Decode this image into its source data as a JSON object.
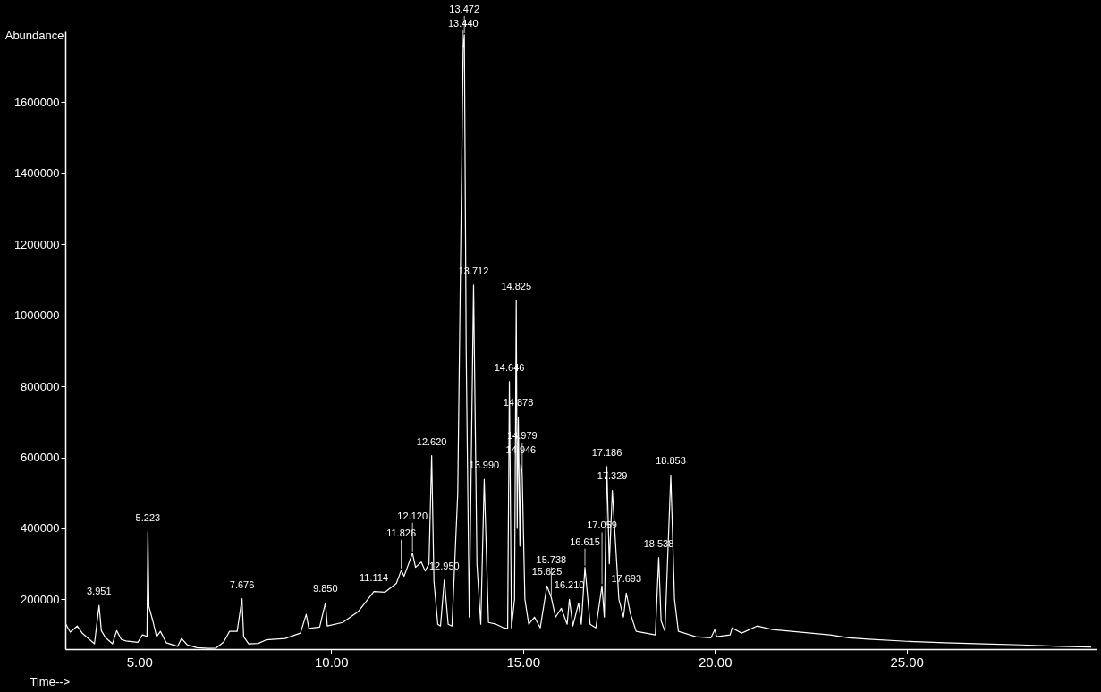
{
  "chart_data": {
    "type": "line",
    "xlabel": "Time-->",
    "ylabel": "Abundance",
    "xlim": [
      3.07,
      29.95
    ],
    "ylim": [
      60000,
      1800000
    ],
    "xticks": [
      {
        "value": 5,
        "label": "5.00"
      },
      {
        "value": 10,
        "label": "10.00"
      },
      {
        "value": 15,
        "label": "15.00"
      },
      {
        "value": 20,
        "label": "20.00"
      },
      {
        "value": 25,
        "label": "25.00"
      }
    ],
    "yticks": [
      200000,
      400000,
      600000,
      800000,
      1000000,
      1200000,
      1400000,
      1600000
    ],
    "grid": false,
    "marker": "none",
    "line_style": "solid",
    "series": [
      {
        "color": "#ffffff",
        "x": [
          3.07,
          3.2,
          3.38,
          3.52,
          3.83,
          3.951,
          4.01,
          4.12,
          4.3,
          4.41,
          4.53,
          4.65,
          4.96,
          5.08,
          5.2,
          5.223,
          5.25,
          5.35,
          5.45,
          5.55,
          5.7,
          6.0,
          6.1,
          6.25,
          6.5,
          6.8,
          7.0,
          7.2,
          7.35,
          7.55,
          7.676,
          7.72,
          7.85,
          8.1,
          8.3,
          8.8,
          9.2,
          9.35,
          9.42,
          9.7,
          9.85,
          9.9,
          10.3,
          10.7,
          11.114,
          11.4,
          11.7,
          11.826,
          11.9,
          12.12,
          12.2,
          12.35,
          12.45,
          12.55,
          12.62,
          12.68,
          12.78,
          12.85,
          12.95,
          13.05,
          13.15,
          13.3,
          13.44,
          13.472,
          13.52,
          13.6,
          13.712,
          13.8,
          13.9,
          13.99,
          14.1,
          14.3,
          14.5,
          14.6,
          14.646,
          14.7,
          14.78,
          14.825,
          14.85,
          14.878,
          14.92,
          14.946,
          14.979,
          15.05,
          15.15,
          15.3,
          15.45,
          15.625,
          15.738,
          15.85,
          16.0,
          16.15,
          16.21,
          16.3,
          16.45,
          16.52,
          16.615,
          16.75,
          16.9,
          17.059,
          17.12,
          17.186,
          17.25,
          17.329,
          17.5,
          17.62,
          17.693,
          17.8,
          17.95,
          18.2,
          18.45,
          18.538,
          18.6,
          18.7,
          18.853,
          18.95,
          19.05,
          19.5,
          19.9,
          20.0,
          20.05,
          20.4,
          20.45,
          20.7,
          21.1,
          21.5,
          22.0,
          22.5,
          23.0,
          23.5,
          24.0,
          25.0,
          26.0,
          27.0,
          28.0,
          29.0,
          29.8
        ],
        "values": [
          133000,
          108000,
          125000,
          104000,
          75000,
          183000,
          112000,
          92000,
          75000,
          112000,
          87000,
          83000,
          79000,
          100000,
          96000,
          390000,
          180000,
          140000,
          95000,
          110000,
          78000,
          68000,
          90000,
          72000,
          64000,
          62000,
          63000,
          80000,
          110000,
          110000,
          202000,
          95000,
          75000,
          76000,
          86000,
          90000,
          105000,
          158000,
          118000,
          122000,
          190000,
          125000,
          135000,
          165000,
          222000,
          220000,
          245000,
          282000,
          265000,
          330000,
          290000,
          305000,
          280000,
          300000,
          605000,
          250000,
          130000,
          125000,
          255000,
          130000,
          125000,
          500000,
          1750000,
          1790000,
          900000,
          150000,
          1085000,
          300000,
          130000,
          538000,
          135000,
          130000,
          120000,
          118000,
          814000,
          120000,
          200000,
          1042000,
          400000,
          714000,
          350000,
          580000,
          555000,
          200000,
          130000,
          150000,
          120000,
          238000,
          205000,
          150000,
          175000,
          130000,
          200000,
          125000,
          190000,
          130000,
          290000,
          130000,
          120000,
          238000,
          150000,
          574000,
          300000,
          507000,
          200000,
          150000,
          218000,
          160000,
          110000,
          105000,
          100000,
          318000,
          140000,
          110000,
          550000,
          200000,
          110000,
          95000,
          92000,
          115000,
          95000,
          100000,
          120000,
          105000,
          125000,
          115000,
          110000,
          105000,
          100000,
          92000,
          88000,
          82000,
          78000,
          75000,
          72000,
          68000,
          66000
        ]
      }
    ],
    "annotations": [
      {
        "text": "3.951",
        "x": 3.951,
        "y": 183000
      },
      {
        "text": "5.223",
        "x": 5.223,
        "y": 390000
      },
      {
        "text": "7.676",
        "x": 7.676,
        "y": 202000
      },
      {
        "text": "9.850",
        "x": 9.85,
        "y": 190000
      },
      {
        "text": "11.114",
        "x": 11.114,
        "y": 222000
      },
      {
        "text": "11.826",
        "x": 11.826,
        "y": 282000
      },
      {
        "text": "12.120",
        "x": 12.12,
        "y": 330000
      },
      {
        "text": "12.620",
        "x": 12.62,
        "y": 605000
      },
      {
        "text": "12.950",
        "x": 12.95,
        "y": 255000
      },
      {
        "text": "13.440",
        "x": 13.44,
        "y": 1750000
      },
      {
        "text": "13.472",
        "x": 13.472,
        "y": 1790000
      },
      {
        "text": "13.712",
        "x": 13.712,
        "y": 1085000
      },
      {
        "text": "13.990",
        "x": 13.99,
        "y": 538000
      },
      {
        "text": "14.646",
        "x": 14.646,
        "y": 814000
      },
      {
        "text": "14.825",
        "x": 14.825,
        "y": 1042000
      },
      {
        "text": "14.878",
        "x": 14.878,
        "y": 714000
      },
      {
        "text": "14.946",
        "x": 14.946,
        "y": 580000
      },
      {
        "text": "14.979",
        "x": 14.979,
        "y": 555000
      },
      {
        "text": "15.625",
        "x": 15.625,
        "y": 238000
      },
      {
        "text": "15.738",
        "x": 15.738,
        "y": 205000
      },
      {
        "text": "16.210",
        "x": 16.21,
        "y": 200000
      },
      {
        "text": "16.615",
        "x": 16.615,
        "y": 290000
      },
      {
        "text": "17.059",
        "x": 17.059,
        "y": 238000
      },
      {
        "text": "17.186",
        "x": 17.186,
        "y": 574000
      },
      {
        "text": "17.329",
        "x": 17.329,
        "y": 507000
      },
      {
        "text": "17.693",
        "x": 17.693,
        "y": 218000
      },
      {
        "text": "18.538",
        "x": 18.538,
        "y": 318000
      },
      {
        "text": "18.853",
        "x": 18.853,
        "y": 550000
      }
    ]
  }
}
